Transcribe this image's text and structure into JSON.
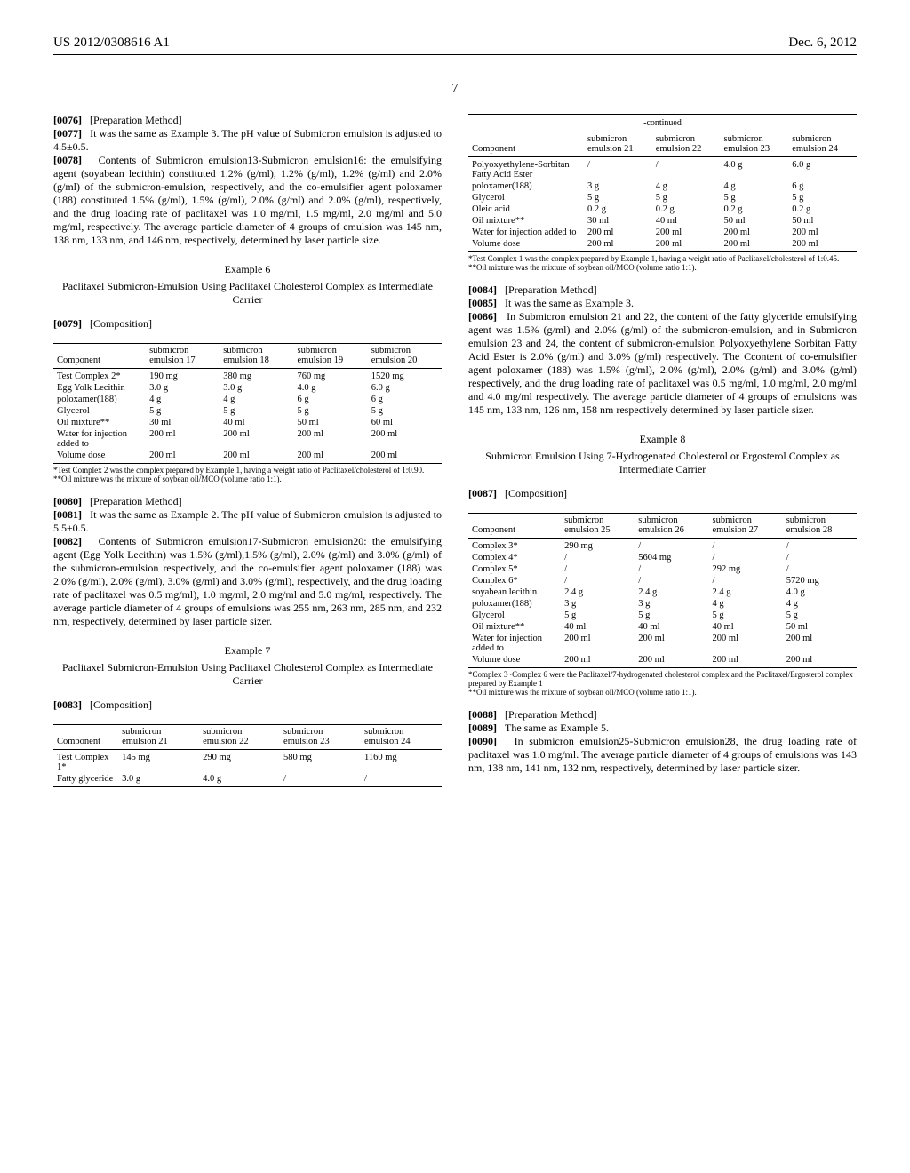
{
  "header": {
    "left": "US 2012/0308616 A1",
    "right": "Dec. 6, 2012"
  },
  "page_number": "7",
  "left_column": {
    "p76": "[Preparation Method]",
    "p77": "It was the same as Example 3. The pH value of Submicron emulsion is adjusted to 4.5±0.5.",
    "p78": "Contents of Submicron emulsion13-Submicron emulsion16: the emulsifying agent (soyabean lecithin) constituted 1.2% (g/ml), 1.2% (g/ml), 1.2% (g/ml) and 2.0% (g/ml) of the submicron-emulsion, respectively, and the co-emulsifier agent poloxamer (188) constituted 1.5% (g/ml), 1.5% (g/ml), 2.0% (g/ml) and 2.0% (g/ml), respectively, and the drug loading rate of paclitaxel was 1.0 mg/ml, 1.5 mg/ml, 2.0 mg/ml and 5.0 mg/ml, respectively. The average particle diameter of 4 groups of emulsion was 145 nm, 138 nm, 133 nm, and 146 nm, respectively, determined by laser particle size.",
    "ex6_title": "Example 6",
    "ex6_sub": "Paclitaxel Submicron-Emulsion Using Paclitaxel Cholesterol Complex as Intermediate Carrier",
    "p79": "[Composition]",
    "table6": {
      "headers": [
        "Component",
        "submicron emulsion 17",
        "submicron emulsion 18",
        "submicron emulsion 19",
        "submicron emulsion 20"
      ],
      "rows": [
        [
          "Test Complex 2*",
          "190 mg",
          "380 mg",
          "760 mg",
          "1520 mg"
        ],
        [
          "Egg Yolk Lecithin",
          "3.0 g",
          "3.0 g",
          "4.0 g",
          "6.0 g"
        ],
        [
          "poloxamer(188)",
          "4 g",
          "4 g",
          "6 g",
          "6 g"
        ],
        [
          "Glycerol",
          "5 g",
          "5 g",
          "5 g",
          "5 g"
        ],
        [
          "Oil mixture**",
          "30 ml",
          "40 ml",
          "50 ml",
          "60 ml"
        ],
        [
          "Water for injection added to",
          "200 ml",
          "200 ml",
          "200 ml",
          "200 ml"
        ],
        [
          "Volume dose",
          "200 ml",
          "200 ml",
          "200 ml",
          "200 ml"
        ]
      ],
      "footnote1": "*Test Complex 2 was the complex prepared by Example 1, having a weight ratio of Paclitaxel/cholesterol of 1:0.90.",
      "footnote2": "**Oil mixture was the mixture of soybean oil/MCO (volume ratio 1:1)."
    },
    "p80": "[Preparation Method]",
    "p81": "It was the same as Example 2. The pH value of Submicron emulsion is adjusted to 5.5±0.5.",
    "p82": "Contents of Submicron emulsion17-Submicron emulsion20: the emulsifying agent (Egg Yolk Lecithin) was 1.5% (g/ml),1.5% (g/ml), 2.0% (g/ml) and 3.0% (g/ml) of the submicron-emulsion respectively, and the co-emulsifier agent poloxamer (188) was 2.0% (g/ml), 2.0% (g/ml), 3.0% (g/ml) and 3.0% (g/ml), respectively, and the drug loading rate of paclitaxel was 0.5 mg/ml), 1.0 mg/ml, 2.0 mg/ml and 5.0 mg/ml, respectively. The average particle diameter of 4 groups of emulsions was 255 nm, 263 nm, 285 nm, and 232 nm, respectively, determined by laser particle sizer.",
    "ex7_title": "Example 7",
    "ex7_sub": "Paclitaxel Submicron-Emulsion Using Paclitaxel Cholesterol Complex as Intermediate Carrier",
    "p83": "[Composition]",
    "table7a": {
      "headers": [
        "Component",
        "submicron emulsion 21",
        "submicron emulsion 22",
        "submicron emulsion 23",
        "submicron emulsion 24"
      ],
      "rows": [
        [
          "Test Complex 1*",
          "145 mg",
          "290 mg",
          "580 mg",
          "1160 mg"
        ],
        [
          "Fatty glyceride",
          "3.0 g",
          "4.0 g",
          "/",
          "/"
        ]
      ]
    }
  },
  "right_column": {
    "continued": "-continued",
    "table7b": {
      "headers": [
        "Component",
        "submicron emulsion 21",
        "submicron emulsion 22",
        "submicron emulsion 23",
        "submicron emulsion 24"
      ],
      "rows": [
        [
          "Polyoxyethylene-Sorbitan Fatty Acid Ester",
          "/",
          "/",
          "4.0 g",
          "6.0 g"
        ],
        [
          "poloxamer(188)",
          "3 g",
          "4 g",
          "4 g",
          "6 g"
        ],
        [
          "Glycerol",
          "5 g",
          "5 g",
          "5 g",
          "5 g"
        ],
        [
          "Oleic acid",
          "0.2 g",
          "0.2 g",
          "0.2 g",
          "0.2 g"
        ],
        [
          "Oil mixture**",
          "30 ml",
          "40 ml",
          "50 ml",
          "50 ml"
        ],
        [
          "Water for injection added to",
          "200 ml",
          "200 ml",
          "200 ml",
          "200 ml"
        ],
        [
          "Volume dose",
          "200 ml",
          "200 ml",
          "200 ml",
          "200 ml"
        ]
      ],
      "footnote1": "*Test Complex 1 was the complex prepared by Example 1, having a weight ratio of Paclitaxel/cholesterol of 1:0.45.",
      "footnote2": "**Oil mixture was the mixture of soybean oil/MCO (volume ratio 1:1)."
    },
    "p84": "[Preparation Method]",
    "p85": "It was the same as Example 3.",
    "p86": "In Submicron emulsion 21 and 22, the content of the fatty glyceride emulsifying agent was 1.5% (g/ml) and 2.0% (g/ml) of the submicron-emulsion, and in Submicron emulsion 23 and 24, the content of submicron-emulsion Polyoxyethylene Sorbitan Fatty Acid Ester is 2.0% (g/ml) and 3.0% (g/ml) respectively. The Ccontent of co-emulsifier agent poloxamer (188) was 1.5% (g/ml), 2.0% (g/ml), 2.0% (g/ml) and 3.0% (g/ml) respectively, and the drug loading rate of paclitaxel was 0.5 mg/ml, 1.0 mg/ml, 2.0 mg/ml and 4.0 mg/ml respectively. The average particle diameter of 4 groups of emulsions was 145 nm, 133 nm, 126 nm, 158 nm respectively determined by laser particle sizer.",
    "ex8_title": "Example 8",
    "ex8_sub": "Submicron Emulsion Using 7-Hydrogenated Cholesterol or Ergosterol Complex as Intermediate Carrier",
    "p87": "[Composition]",
    "table8": {
      "headers": [
        "Component",
        "submicron emulsion 25",
        "submicron emulsion 26",
        "submicron emulsion 27",
        "submicron emulsion 28"
      ],
      "rows": [
        [
          "Complex 3*",
          "290 mg",
          "/",
          "/",
          "/"
        ],
        [
          "Complex 4*",
          "/",
          "5604 mg",
          "/",
          "/"
        ],
        [
          "Complex 5*",
          "/",
          "/",
          "292 mg",
          "/"
        ],
        [
          "Complex 6*",
          "/",
          "/",
          "/",
          "5720 mg"
        ],
        [
          "soyabean lecithin",
          "2.4 g",
          "2.4 g",
          "2.4 g",
          "4.0 g"
        ],
        [
          "poloxamer(188)",
          "3 g",
          "3 g",
          "4 g",
          "4 g"
        ],
        [
          "Glycerol",
          "5 g",
          "5 g",
          "5 g",
          "5 g"
        ],
        [
          "Oil mixture**",
          "40 ml",
          "40 ml",
          "40 ml",
          "50 ml"
        ],
        [
          "Water for injection added to",
          "200 ml",
          "200 ml",
          "200 ml",
          "200 ml"
        ],
        [
          "Volume dose",
          "200 ml",
          "200 ml",
          "200 ml",
          "200 ml"
        ]
      ],
      "footnote1": "*Complex 3~Complex 6 were the Paclitaxel/7-hydrogenated cholesterol complex and the Paclitaxel/Ergosterol complex prepared by Example 1",
      "footnote2": "**Oil mixture was the mixture of soybean oil/MCO (volume ratio 1:1)."
    },
    "p88": "[Preparation Method]",
    "p89": "The same as Example 5.",
    "p90": "In submicron emulsion25-Submicron emulsion28, the drug loading rate of paclitaxel was 1.0 mg/ml. The average particle diameter of 4 groups of emulsions was 143 nm, 138 nm, 141 nm, 132 nm, respectively, determined by laser particle sizer."
  }
}
